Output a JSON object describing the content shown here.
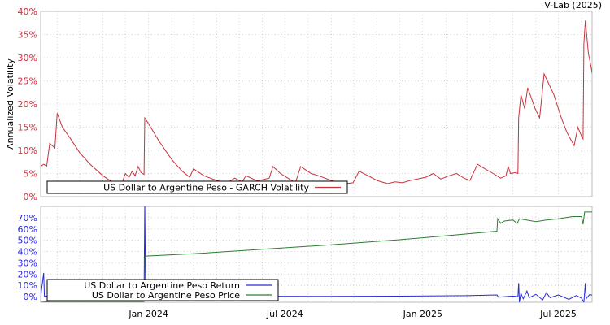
{
  "watermark": "V-Lab (2025)",
  "chart_data": [
    {
      "type": "line",
      "panel": "top",
      "title": "",
      "xlabel": "",
      "ylabel": "Annualized Volatility",
      "x_range": [
        "2023-08-10",
        "2025-08-15"
      ],
      "ylim": [
        0,
        40
      ],
      "y_ticks": [
        0,
        5,
        10,
        15,
        20,
        25,
        30,
        35,
        40
      ],
      "y_tick_labels": [
        "0%",
        "5%",
        "10%",
        "15%",
        "20%",
        "25%",
        "30%",
        "35%",
        "40%"
      ],
      "grid": true,
      "legend_position": "bottom-left",
      "series": [
        {
          "name": "US Dollar to Argentine Peso - GARCH Volatility",
          "color": "#c8323c",
          "points": [
            [
              "2023-08-10",
              6.5
            ],
            [
              "2023-08-14",
              7.0
            ],
            [
              "2023-08-18",
              6.6
            ],
            [
              "2023-08-22",
              11.5
            ],
            [
              "2023-08-29",
              10.5
            ],
            [
              "2023-09-01",
              18.0
            ],
            [
              "2023-09-08",
              15.0
            ],
            [
              "2023-09-19",
              12.5
            ],
            [
              "2023-10-01",
              9.5
            ],
            [
              "2023-10-15",
              7.0
            ],
            [
              "2023-11-01",
              4.5
            ],
            [
              "2023-11-15",
              3.0
            ],
            [
              "2023-11-25",
              2.2
            ],
            [
              "2023-12-01",
              5.0
            ],
            [
              "2023-12-06",
              4.2
            ],
            [
              "2023-12-10",
              5.5
            ],
            [
              "2023-12-14",
              4.5
            ],
            [
              "2023-12-18",
              6.5
            ],
            [
              "2023-12-22",
              5.2
            ],
            [
              "2023-12-26",
              4.8
            ],
            [
              "2023-12-27",
              17.0
            ],
            [
              "2023-12-31",
              16.0
            ],
            [
              "2024-01-15",
              12.0
            ],
            [
              "2024-02-01",
              8.0
            ],
            [
              "2024-02-15",
              5.5
            ],
            [
              "2024-02-25",
              4.2
            ],
            [
              "2024-03-01",
              6.0
            ],
            [
              "2024-03-15",
              4.5
            ],
            [
              "2024-04-01",
              3.5
            ],
            [
              "2024-04-15",
              3.0
            ],
            [
              "2024-04-25",
              4.0
            ],
            [
              "2024-05-05",
              3.2
            ],
            [
              "2024-05-10",
              4.5
            ],
            [
              "2024-05-25",
              3.4
            ],
            [
              "2024-06-10",
              4.0
            ],
            [
              "2024-06-15",
              6.5
            ],
            [
              "2024-06-25",
              5.0
            ],
            [
              "2024-07-05",
              4.0
            ],
            [
              "2024-07-15",
              3.0
            ],
            [
              "2024-07-22",
              6.5
            ],
            [
              "2024-08-05",
              5.0
            ],
            [
              "2024-08-15",
              4.5
            ],
            [
              "2024-09-01",
              3.5
            ],
            [
              "2024-09-20",
              2.8
            ],
            [
              "2024-09-30",
              3.0
            ],
            [
              "2024-10-08",
              5.5
            ],
            [
              "2024-10-20",
              4.5
            ],
            [
              "2024-11-01",
              3.5
            ],
            [
              "2024-11-15",
              2.8
            ],
            [
              "2024-11-25",
              3.2
            ],
            [
              "2024-12-05",
              3.0
            ],
            [
              "2024-12-15",
              3.5
            ],
            [
              "2024-12-25",
              3.8
            ],
            [
              "2025-01-05",
              4.2
            ],
            [
              "2025-01-15",
              5.0
            ],
            [
              "2025-01-25",
              3.8
            ],
            [
              "2025-02-05",
              4.5
            ],
            [
              "2025-02-15",
              5.0
            ],
            [
              "2025-02-25",
              4.0
            ],
            [
              "2025-03-05",
              3.5
            ],
            [
              "2025-03-15",
              7.0
            ],
            [
              "2025-03-25",
              6.0
            ],
            [
              "2025-04-05",
              5.0
            ],
            [
              "2025-04-15",
              4.0
            ],
            [
              "2025-04-22",
              4.5
            ],
            [
              "2025-04-25",
              6.5
            ],
            [
              "2025-04-28",
              5.0
            ],
            [
              "2025-05-05",
              5.2
            ],
            [
              "2025-05-08",
              5.0
            ],
            [
              "2025-05-09",
              17.0
            ],
            [
              "2025-05-12",
              22.0
            ],
            [
              "2025-05-17",
              19.0
            ],
            [
              "2025-05-21",
              23.5
            ],
            [
              "2025-05-31",
              19.0
            ],
            [
              "2025-06-06",
              17.0
            ],
            [
              "2025-06-12",
              26.5
            ],
            [
              "2025-06-25",
              22.0
            ],
            [
              "2025-07-05",
              17.0
            ],
            [
              "2025-07-12",
              14.0
            ],
            [
              "2025-07-22",
              11.0
            ],
            [
              "2025-07-27",
              15.0
            ],
            [
              "2025-08-01",
              13.0
            ],
            [
              "2025-08-03",
              12.5
            ],
            [
              "2025-08-04",
              33.0
            ],
            [
              "2025-08-06",
              38.0
            ],
            [
              "2025-08-10",
              31.0
            ],
            [
              "2025-08-16",
              26.0
            ],
            [
              "2025-08-20",
              23.0
            ],
            [
              "2025-08-25",
              21.5
            ],
            [
              "2025-08-28",
              22.5
            ]
          ]
        }
      ]
    },
    {
      "type": "line",
      "panel": "bottom",
      "title": "",
      "xlabel": "",
      "ylabel": "",
      "x_range": [
        "2023-08-10",
        "2025-08-15"
      ],
      "x_ticks": [
        "2024-01-01",
        "2024-07-01",
        "2025-01-01",
        "2025-07-01"
      ],
      "x_tick_labels": [
        "Jan 2024",
        "Jul 2024",
        "Jan 2025",
        "Jul 2025"
      ],
      "ylim": [
        -5,
        80
      ],
      "y_ticks": [
        0,
        10,
        20,
        30,
        40,
        50,
        60,
        70
      ],
      "y_tick_labels": [
        "0%",
        "10%",
        "20%",
        "30%",
        "40%",
        "50%",
        "60%",
        "70%"
      ],
      "grid": true,
      "legend_position": "bottom-left",
      "series": [
        {
          "name": "US Dollar to Argentine Peso Return",
          "color": "#2a2ad8",
          "points": [
            [
              "2023-08-10",
              0.0
            ],
            [
              "2023-08-14",
              21.0
            ],
            [
              "2023-08-15",
              0.5
            ],
            [
              "2023-08-25",
              0.0
            ],
            [
              "2023-12-26",
              0.2
            ],
            [
              "2023-12-27",
              85.0
            ],
            [
              "2023-12-28",
              0.1
            ],
            [
              "2024-03-01",
              0.2
            ],
            [
              "2024-06-01",
              0.3
            ],
            [
              "2024-09-01",
              0.2
            ],
            [
              "2024-12-01",
              0.4
            ],
            [
              "2025-03-01",
              0.8
            ],
            [
              "2025-04-10",
              1.5
            ],
            [
              "2025-04-12",
              -0.5
            ],
            [
              "2025-05-01",
              0.5
            ],
            [
              "2025-05-08",
              0.0
            ],
            [
              "2025-05-09",
              12.0
            ],
            [
              "2025-05-10",
              -5.0
            ],
            [
              "2025-05-12",
              3.0
            ],
            [
              "2025-05-15",
              -2.0
            ],
            [
              "2025-05-20",
              5.0
            ],
            [
              "2025-05-23",
              -1.0
            ],
            [
              "2025-06-01",
              2.0
            ],
            [
              "2025-06-10",
              -3.0
            ],
            [
              "2025-06-15",
              3.5
            ],
            [
              "2025-06-20",
              -1.0
            ],
            [
              "2025-07-01",
              1.5
            ],
            [
              "2025-07-15",
              -2.5
            ],
            [
              "2025-07-25",
              1.0
            ],
            [
              "2025-08-01",
              -1.5
            ],
            [
              "2025-08-04",
              -5.0
            ],
            [
              "2025-08-06",
              12.0
            ],
            [
              "2025-08-07",
              -2.0
            ],
            [
              "2025-08-12",
              2.0
            ],
            [
              "2025-08-18",
              0.5
            ],
            [
              "2025-08-25",
              3.0
            ]
          ]
        },
        {
          "name": "US Dollar to Argentine Peso Price",
          "color": "#2e7d32",
          "points": [
            [
              "2023-08-10",
              -5.0
            ],
            [
              "2023-08-22",
              -4.5
            ],
            [
              "2023-12-26",
              -4.5
            ],
            [
              "2023-12-27",
              34.0
            ],
            [
              "2023-12-29",
              36.0
            ],
            [
              "2024-03-01",
              38.0
            ],
            [
              "2024-06-01",
              42.0
            ],
            [
              "2024-09-01",
              46.0
            ],
            [
              "2024-12-01",
              50.5
            ],
            [
              "2025-02-01",
              54.0
            ],
            [
              "2025-04-10",
              58.0
            ],
            [
              "2025-04-11",
              69.0
            ],
            [
              "2025-04-15",
              65.0
            ],
            [
              "2025-04-20",
              67.0
            ],
            [
              "2025-05-01",
              68.0
            ],
            [
              "2025-05-07",
              65.0
            ],
            [
              "2025-05-10",
              69.0
            ],
            [
              "2025-06-01",
              66.5
            ],
            [
              "2025-06-15",
              68.0
            ],
            [
              "2025-07-01",
              69.0
            ],
            [
              "2025-07-20",
              71.0
            ],
            [
              "2025-08-01",
              71.0
            ],
            [
              "2025-08-03",
              64.0
            ],
            [
              "2025-08-05",
              75.0
            ],
            [
              "2025-08-15",
              75.0
            ],
            [
              "2025-08-25",
              76.5
            ],
            [
              "2025-08-28",
              78.0
            ]
          ]
        }
      ]
    }
  ]
}
